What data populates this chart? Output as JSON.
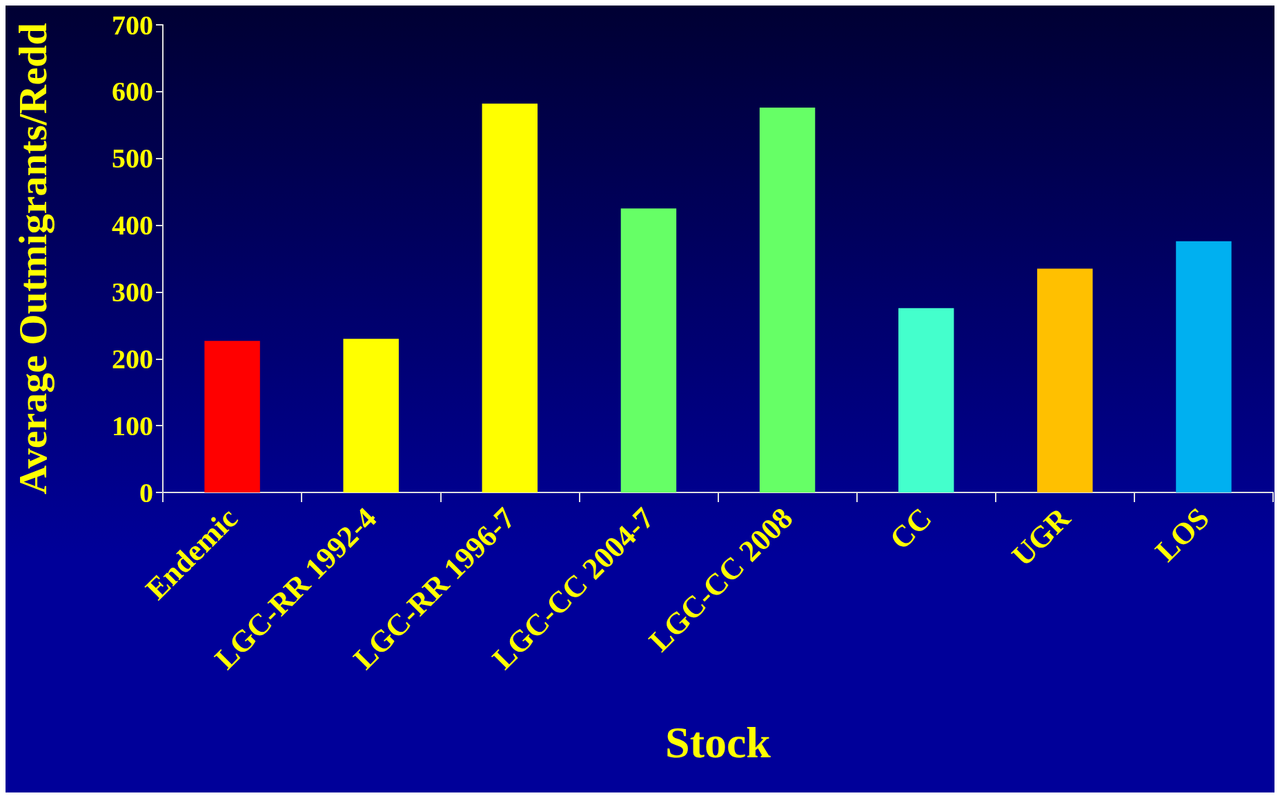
{
  "chart_data": {
    "type": "bar",
    "xlabel": "Stock",
    "ylabel": "Average Outmigrants/Redd",
    "categories": [
      "Endemic",
      "LGC-RR 1992-4",
      "LGC-RR 1996-7",
      "LGC-CC 2004-7",
      "LGC-CC 2008",
      "CC",
      "UGR",
      "LOS"
    ],
    "values": [
      227,
      230,
      582,
      425,
      576,
      276,
      335,
      376
    ],
    "colors": [
      "#ff0000",
      "#ffff00",
      "#ffff00",
      "#66ff66",
      "#66ff66",
      "#44ffcc",
      "#ffc000",
      "#00b0f0"
    ],
    "ylim": [
      0,
      700
    ],
    "yticks": [
      0,
      100,
      200,
      300,
      400,
      500,
      600,
      700
    ],
    "grid": false
  }
}
